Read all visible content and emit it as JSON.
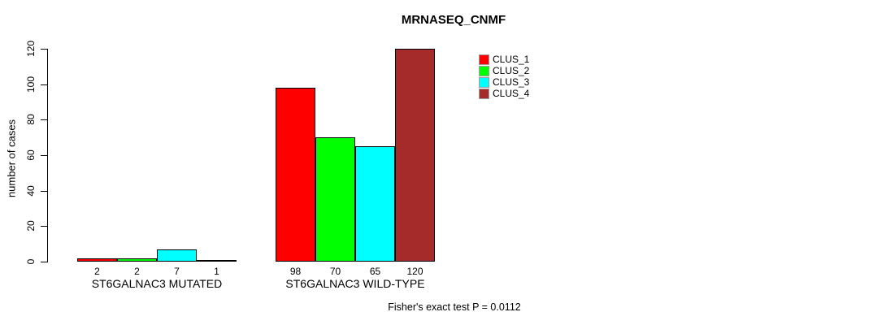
{
  "chart_data": {
    "type": "bar",
    "title": "MRNASEQ_CNMF",
    "ylabel": "number of cases",
    "xlabel": "",
    "ylim": [
      0,
      120
    ],
    "yticks": [
      0,
      20,
      40,
      60,
      80,
      100,
      120
    ],
    "categories": [
      "ST6GALNAC3 MUTATED",
      "ST6GALNAC3 WILD-TYPE"
    ],
    "series": [
      {
        "name": "CLUS_1",
        "color": "#FF0000",
        "values": [
          2,
          98
        ]
      },
      {
        "name": "CLUS_2",
        "color": "#00FF00",
        "values": [
          2,
          70
        ]
      },
      {
        "name": "CLUS_3",
        "color": "#00FFFF",
        "values": [
          7,
          65
        ]
      },
      {
        "name": "CLUS_4",
        "color": "#A52A2A",
        "values": [
          1,
          120
        ]
      }
    ],
    "bar_value_labels": [
      [
        "2",
        "2",
        "7",
        "1"
      ],
      [
        "98",
        "70",
        "65",
        "120"
      ]
    ],
    "annotation": "Fisher's exact test P = 0.0112",
    "legend_position": "inside-top-center-right",
    "grid": false,
    "bar_border_color": "#000000",
    "background_color": "#FFFFFF"
  }
}
